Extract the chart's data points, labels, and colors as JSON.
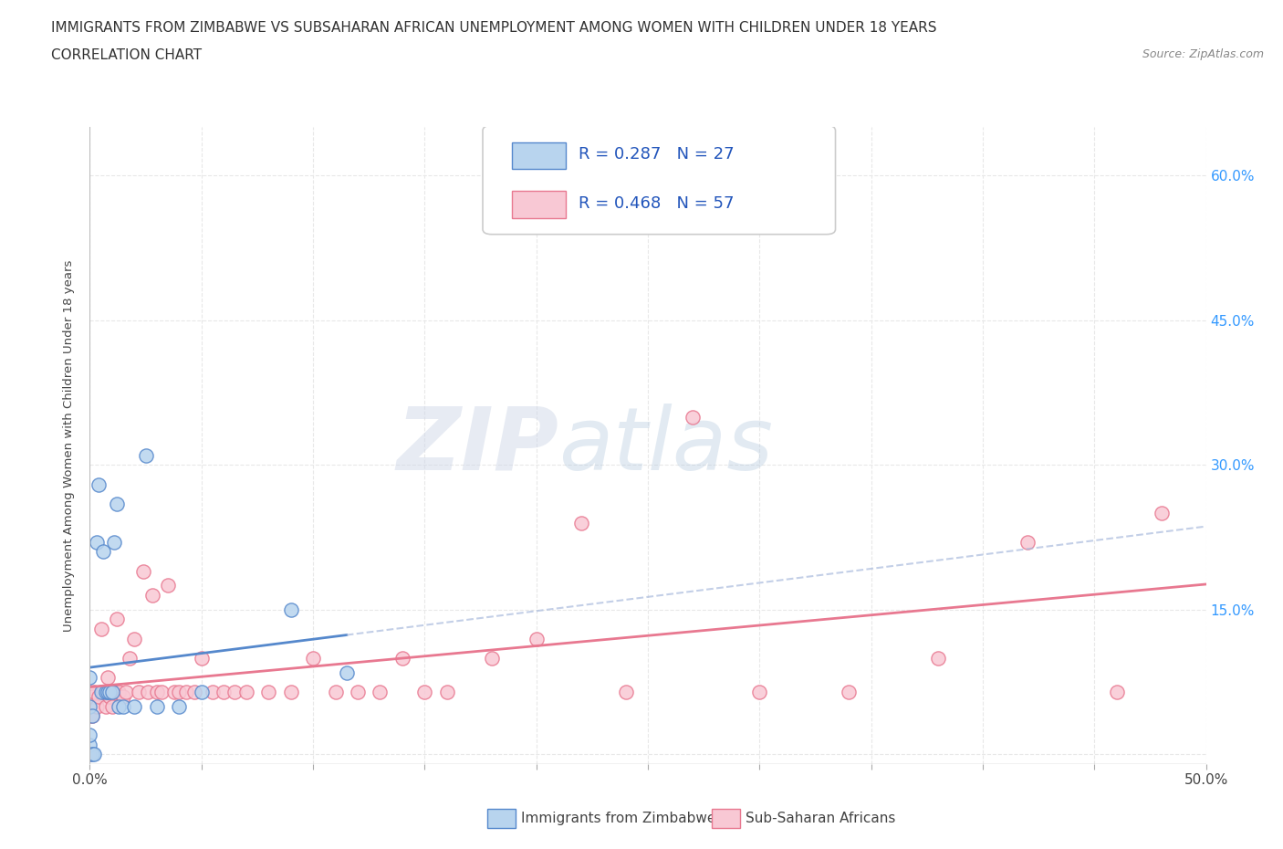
{
  "title_line1": "IMMIGRANTS FROM ZIMBABWE VS SUBSAHARAN AFRICAN UNEMPLOYMENT AMONG WOMEN WITH CHILDREN UNDER 18 YEARS",
  "title_line2": "CORRELATION CHART",
  "source": "Source: ZipAtlas.com",
  "ylabel": "Unemployment Among Women with Children Under 18 years",
  "xlim": [
    0.0,
    0.5
  ],
  "ylim": [
    -0.01,
    0.65
  ],
  "x_ticks": [
    0.0,
    0.05,
    0.1,
    0.15,
    0.2,
    0.25,
    0.3,
    0.35,
    0.4,
    0.45,
    0.5
  ],
  "y_ticks": [
    0.0,
    0.15,
    0.3,
    0.45,
    0.6
  ],
  "grid_color": "#e8e8e8",
  "background_color": "#ffffff",
  "watermark_zip": "ZIP",
  "watermark_atlas": "atlas",
  "zimbabwe_color": "#b8d4ee",
  "zimbabwe_edge": "#5588cc",
  "subsaharan_color": "#f8c8d4",
  "subsaharan_edge": "#e87890",
  "R_zimbabwe": 0.287,
  "N_zimbabwe": 27,
  "R_subsaharan": 0.468,
  "N_subsaharan": 57,
  "zimbabwe_x": [
    0.0,
    0.0,
    0.0,
    0.0,
    0.0,
    0.001,
    0.001,
    0.002,
    0.003,
    0.004,
    0.005,
    0.006,
    0.007,
    0.008,
    0.009,
    0.01,
    0.011,
    0.012,
    0.013,
    0.015,
    0.02,
    0.025,
    0.03,
    0.04,
    0.05,
    0.09,
    0.115
  ],
  "zimbabwe_y": [
    0.0,
    0.01,
    0.02,
    0.05,
    0.08,
    0.0,
    0.04,
    0.0,
    0.22,
    0.28,
    0.065,
    0.21,
    0.065,
    0.065,
    0.065,
    0.065,
    0.22,
    0.26,
    0.05,
    0.05,
    0.05,
    0.31,
    0.05,
    0.05,
    0.065,
    0.15,
    0.085
  ],
  "subsaharan_x": [
    0.0,
    0.0,
    0.0,
    0.001,
    0.001,
    0.002,
    0.003,
    0.004,
    0.005,
    0.006,
    0.007,
    0.008,
    0.009,
    0.01,
    0.011,
    0.012,
    0.013,
    0.015,
    0.016,
    0.018,
    0.02,
    0.022,
    0.024,
    0.026,
    0.028,
    0.03,
    0.032,
    0.035,
    0.038,
    0.04,
    0.043,
    0.047,
    0.05,
    0.055,
    0.06,
    0.065,
    0.07,
    0.08,
    0.09,
    0.1,
    0.11,
    0.12,
    0.13,
    0.14,
    0.15,
    0.16,
    0.18,
    0.2,
    0.22,
    0.24,
    0.27,
    0.3,
    0.34,
    0.38,
    0.42,
    0.46,
    0.48
  ],
  "subsaharan_y": [
    0.0,
    0.04,
    0.065,
    0.04,
    0.06,
    0.065,
    0.05,
    0.06,
    0.13,
    0.065,
    0.05,
    0.08,
    0.06,
    0.05,
    0.065,
    0.14,
    0.065,
    0.06,
    0.065,
    0.1,
    0.12,
    0.065,
    0.19,
    0.065,
    0.165,
    0.065,
    0.065,
    0.175,
    0.065,
    0.065,
    0.065,
    0.065,
    0.1,
    0.065,
    0.065,
    0.065,
    0.065,
    0.065,
    0.065,
    0.1,
    0.065,
    0.065,
    0.065,
    0.1,
    0.065,
    0.065,
    0.1,
    0.12,
    0.24,
    0.065,
    0.35,
    0.065,
    0.065,
    0.1,
    0.22,
    0.065,
    0.25
  ],
  "legend_color_zim": "#b8d4ee",
  "legend_color_sub": "#f8c8d4",
  "legend_edge_zim": "#5588cc",
  "legend_edge_sub": "#e87890",
  "legend_text_color": "#2255bb",
  "legend_label_zim": "Immigrants from Zimbabwe",
  "legend_label_sub": "Sub-Saharan Africans"
}
